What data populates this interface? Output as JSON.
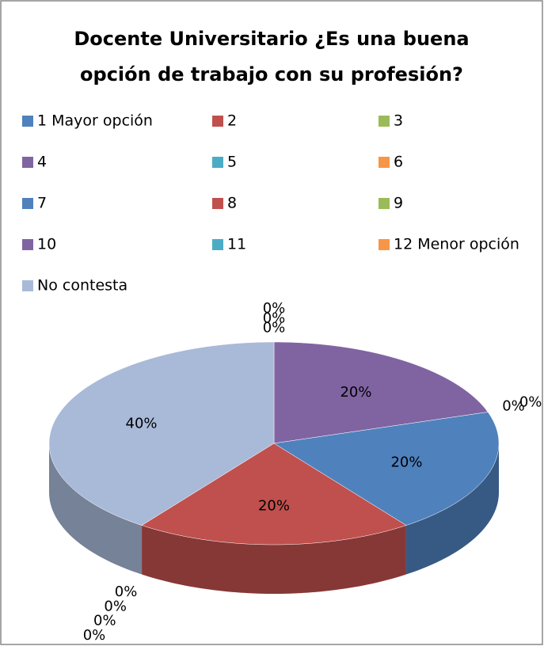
{
  "chart_data": {
    "type": "pie",
    "title": "Docente Universitario ¿Es una buena opción de trabajo con su profesión?",
    "categories": [
      "1 Mayor opción",
      "2",
      "3",
      "4",
      "5",
      "6",
      "7",
      "8",
      "9",
      "10",
      "11",
      "12 Menor opción",
      "No contesta"
    ],
    "values": [
      0,
      0,
      0,
      20,
      0,
      0,
      20,
      20,
      0,
      0,
      0,
      0,
      40
    ],
    "value_labels": [
      "0%",
      "0%",
      "0%",
      "20%",
      "0%",
      "0%",
      "20%",
      "20%",
      "0%",
      "0%",
      "0%",
      "0%",
      "40%"
    ],
    "colors": [
      "#4f81bd",
      "#c0504d",
      "#9bbb59",
      "#8064a2",
      "#4bacc6",
      "#f79646",
      "#4f81bd",
      "#c0504d",
      "#9bbb59",
      "#8064a2",
      "#4bacc6",
      "#f79646",
      "#a9b9d8"
    ],
    "legend": "top"
  }
}
